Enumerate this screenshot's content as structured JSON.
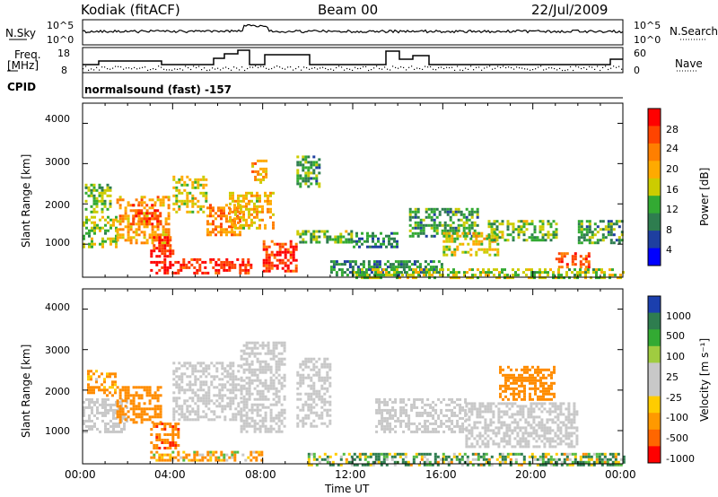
{
  "header": {
    "station": "Kodiak (fitACF)",
    "beam": "Beam 00",
    "date": "22/Jul/2009"
  },
  "params_panel": {
    "nsky_label": "N.Sky",
    "nsky_ticks": [
      "10^5",
      "10^0"
    ],
    "nsearch_label": "N.Search",
    "nsearch_ticks": [
      "10^5",
      "10^0"
    ],
    "freq_label_1": "Freq.",
    "freq_label_2": "[MHz]",
    "freq_ticks": [
      "18",
      "8"
    ],
    "nave_label": "Nave",
    "nave_ticks": [
      "60",
      "0"
    ],
    "cpid_label": "CPID",
    "cpid_value": "normalsound (fast) -157"
  },
  "power_colorbar": {
    "label": "Power [dB]",
    "ticks": [
      "28",
      "24",
      "20",
      "16",
      "12",
      "8",
      "4"
    ],
    "colors": [
      "#ff0000",
      "#ff4400",
      "#ff7f00",
      "#ffaa00",
      "#cccc00",
      "#33aa33",
      "#2e7d4f",
      "#1e3fa0",
      "#0000ff"
    ]
  },
  "velocity_colorbar": {
    "label": "Velocity [m s⁻¹]",
    "ticks": [
      "1000",
      "500",
      "100",
      "25",
      "-25",
      "-100",
      "-500",
      "-1000"
    ],
    "colors": [
      "#1b3fae",
      "#2e7d4f",
      "#33aa33",
      "#a0cc40",
      "#c8c8c8",
      "#c8c8c8",
      "#ffcc00",
      "#ff9900",
      "#ff6600",
      "#ff0000"
    ]
  },
  "axes": {
    "ylabel": "Slant Range [km]",
    "yticks": [
      "4000",
      "3000",
      "2000",
      "1000"
    ],
    "xlabel": "Time UT",
    "xticks": [
      "00:00",
      "04:00",
      "08:00",
      "12:00",
      "16:00",
      "20:00",
      "00:00"
    ]
  },
  "chart_data": [
    {
      "type": "heatmap",
      "title": "",
      "xlabel": "",
      "ylabel": "Slant Range [km]",
      "x_range_hours": [
        0,
        24
      ],
      "ylim": [
        180,
        4500
      ],
      "colorbar": "Power [dB]",
      "colorbar_range": [
        0,
        30
      ],
      "regions": [
        {
          "t": [
            0.1,
            1.2
          ],
          "r": [
            1800,
            2500
          ],
          "v": 12
        },
        {
          "t": [
            0.0,
            1.5
          ],
          "r": [
            900,
            1700
          ],
          "v": 14
        },
        {
          "t": [
            1.5,
            3.8
          ],
          "r": [
            1000,
            2200
          ],
          "v": 20
        },
        {
          "t": [
            2.2,
            3.5
          ],
          "r": [
            1500,
            2000
          ],
          "v": 26
        },
        {
          "t": [
            3.0,
            4.0
          ],
          "r": [
            700,
            1200
          ],
          "v": 28
        },
        {
          "t": [
            3.0,
            7.5
          ],
          "r": [
            250,
            650
          ],
          "v": 29
        },
        {
          "t": [
            4.0,
            5.5
          ],
          "r": [
            1800,
            2700
          ],
          "v": 16
        },
        {
          "t": [
            5.5,
            7.0
          ],
          "r": [
            1200,
            2000
          ],
          "v": 22
        },
        {
          "t": [
            6.5,
            8.5
          ],
          "r": [
            1400,
            2300
          ],
          "v": 18
        },
        {
          "t": [
            7.5,
            8.2
          ],
          "r": [
            2500,
            3100
          ],
          "v": 20
        },
        {
          "t": [
            8.0,
            9.5
          ],
          "r": [
            300,
            1100
          ],
          "v": 28
        },
        {
          "t": [
            9.5,
            10.5
          ],
          "r": [
            2400,
            3200
          ],
          "v": 10
        },
        {
          "t": [
            9.5,
            12.0
          ],
          "r": [
            1050,
            1350
          ],
          "v": 12
        },
        {
          "t": [
            11.0,
            16.0
          ],
          "r": [
            200,
            600
          ],
          "v": 8
        },
        {
          "t": [
            12.0,
            14.0
          ],
          "r": [
            900,
            1300
          ],
          "v": 8
        },
        {
          "t": [
            14.5,
            17.5
          ],
          "r": [
            1200,
            1900
          ],
          "v": 9
        },
        {
          "t": [
            16.0,
            18.5
          ],
          "r": [
            700,
            1300
          ],
          "v": 16
        },
        {
          "t": [
            18.0,
            21.0
          ],
          "r": [
            1100,
            1600
          ],
          "v": 12
        },
        {
          "t": [
            21.0,
            22.5
          ],
          "r": [
            400,
            800
          ],
          "v": 26
        },
        {
          "t": [
            22.0,
            24.0
          ],
          "r": [
            1000,
            1600
          ],
          "v": 10
        },
        {
          "t": [
            12.0,
            24.0
          ],
          "r": [
            180,
            400
          ],
          "v": 14
        }
      ]
    },
    {
      "type": "heatmap",
      "title": "",
      "xlabel": "Time UT",
      "ylabel": "Slant Range [km]",
      "x_range_hours": [
        0,
        24
      ],
      "ylim": [
        180,
        4500
      ],
      "colorbar": "Velocity [m s⁻¹]",
      "colorbar_range": [
        -1000,
        1000
      ],
      "regions": [
        {
          "t": [
            0.2,
            1.4
          ],
          "r": [
            1900,
            2500
          ],
          "v": -200
        },
        {
          "t": [
            0.0,
            2.0
          ],
          "r": [
            1000,
            1800
          ],
          "v": 0
        },
        {
          "t": [
            1.5,
            3.5
          ],
          "r": [
            1200,
            2100
          ],
          "v": -300
        },
        {
          "t": [
            3.0,
            4.2
          ],
          "r": [
            600,
            1200
          ],
          "v": -400
        },
        {
          "t": [
            3.0,
            8.0
          ],
          "r": [
            300,
            500
          ],
          "v": -150
        },
        {
          "t": [
            4.0,
            7.0
          ],
          "r": [
            1300,
            2700
          ],
          "v": 0
        },
        {
          "t": [
            7.0,
            9.0
          ],
          "r": [
            1000,
            3200
          ],
          "v": 0
        },
        {
          "t": [
            9.5,
            11.0
          ],
          "r": [
            1100,
            2800
          ],
          "v": 0
        },
        {
          "t": [
            13.0,
            17.0
          ],
          "r": [
            1000,
            1800
          ],
          "v": 0
        },
        {
          "t": [
            17.0,
            22.0
          ],
          "r": [
            600,
            1700
          ],
          "v": 0
        },
        {
          "t": [
            18.5,
            21.0
          ],
          "r": [
            1800,
            2600
          ],
          "v": -300
        },
        {
          "t": [
            10.0,
            24.0
          ],
          "r": [
            180,
            450
          ],
          "v": 80
        }
      ]
    }
  ]
}
